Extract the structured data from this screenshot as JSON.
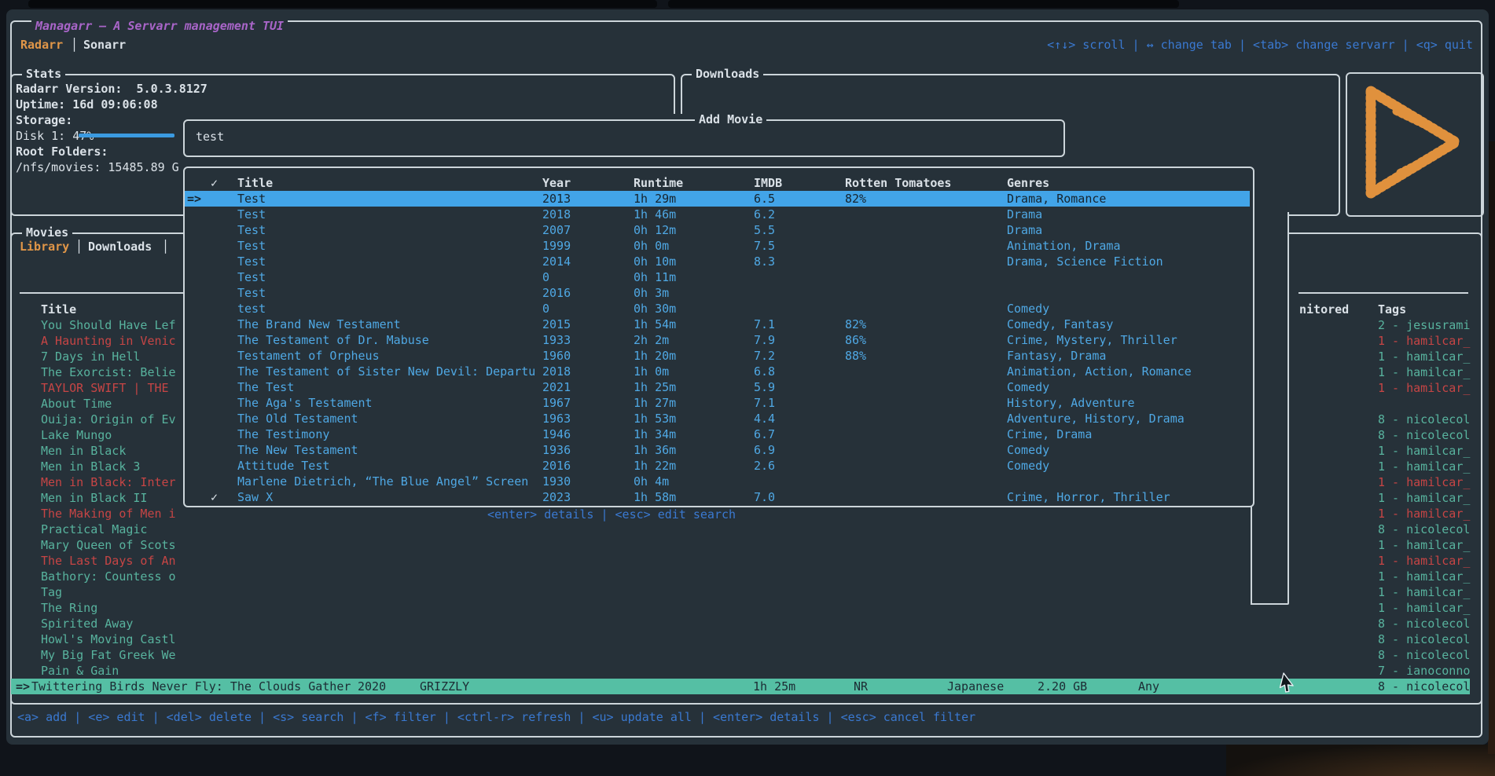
{
  "window": {
    "title": "Managarr – A Servarr management TUI",
    "tab_radarr": "Radarr",
    "tab_sonarr": "Sonarr",
    "separator": "│",
    "help": "<↑↓> scroll | ↔ change tab | <tab> change servarr | <q> quit"
  },
  "stats": {
    "title": "Stats",
    "version_line": "Radarr Version:  5.0.3.8127",
    "uptime_line": "Uptime: 16d 09:06:08",
    "storage_label": "Storage:",
    "disk_line": "Disk 1: 47%",
    "disk_percent": 47,
    "root_label": "Root Folders:",
    "root_line": "/nfs/movies: 15485.89 G"
  },
  "downloads": {
    "title": "Downloads"
  },
  "logo": {
    "icon": "radarr-dotted-play-logo",
    "color": "#e0913d"
  },
  "movies": {
    "title": "Movies",
    "tab_library": "Library",
    "tab_downloads": "Downloads",
    "headers": {
      "title": "Title",
      "monitored": "nitored",
      "tags": "Tags"
    },
    "rows": [
      {
        "title": "You Should Have Lef",
        "flag": false,
        "tag": "2 - jesusrami",
        "tag_flag": false
      },
      {
        "title": "A Haunting in Venic",
        "flag": true,
        "tag": "1 - hamilcar_",
        "tag_flag": true
      },
      {
        "title": "7 Days in Hell",
        "flag": false,
        "tag": "1 - hamilcar_",
        "tag_flag": false
      },
      {
        "title": "The Exorcist: Belie",
        "flag": false,
        "tag": "1 - hamilcar_",
        "tag_flag": false
      },
      {
        "title": "TAYLOR SWIFT | THE",
        "flag": true,
        "tag": "1 - hamilcar_",
        "tag_flag": true
      },
      {
        "title": "About Time",
        "flag": false,
        "tag": "",
        "tag_flag": false
      },
      {
        "title": "Ouija: Origin of Ev",
        "flag": false,
        "tag": "8 - nicolecol",
        "tag_flag": false
      },
      {
        "title": "Lake Mungo",
        "flag": false,
        "tag": "8 - nicolecol",
        "tag_flag": false
      },
      {
        "title": "Men in Black",
        "flag": false,
        "tag": "1 - hamilcar_",
        "tag_flag": false
      },
      {
        "title": "Men in Black 3",
        "flag": false,
        "tag": "1 - hamilcar_",
        "tag_flag": false
      },
      {
        "title": "Men in Black: Inter",
        "flag": true,
        "tag": "1 - hamilcar_",
        "tag_flag": true
      },
      {
        "title": "Men in Black II",
        "flag": false,
        "tag": "1 - hamilcar_",
        "tag_flag": false
      },
      {
        "title": "The Making of Men i",
        "flag": true,
        "tag": "1 - hamilcar_",
        "tag_flag": true
      },
      {
        "title": "Practical Magic",
        "flag": false,
        "tag": "8 - nicolecol",
        "tag_flag": false
      },
      {
        "title": "Mary Queen of Scots",
        "flag": false,
        "tag": "1 - hamilcar_",
        "tag_flag": false
      },
      {
        "title": "The Last Days of An",
        "flag": true,
        "tag": "1 - hamilcar_",
        "tag_flag": true
      },
      {
        "title": "Bathory: Countess o",
        "flag": false,
        "tag": "1 - hamilcar_",
        "tag_flag": false
      },
      {
        "title": "Tag",
        "flag": false,
        "tag": "1 - hamilcar_",
        "tag_flag": false
      },
      {
        "title": "The Ring",
        "flag": false,
        "tag": "1 - hamilcar_",
        "tag_flag": false
      },
      {
        "title": "Spirited Away",
        "flag": false,
        "tag": "8 - nicolecol",
        "tag_flag": false
      },
      {
        "title": "Howl's Moving Castl",
        "flag": false,
        "tag": "8 - nicolecol",
        "tag_flag": false
      },
      {
        "title": "My Big Fat Greek We",
        "flag": false,
        "tag": "8 - nicolecol",
        "tag_flag": false
      },
      {
        "title": "Pain & Gain",
        "flag": false,
        "tag": "7 - ianoconno",
        "tag_flag": false
      }
    ],
    "selected": {
      "marker": "=>",
      "title": "Twittering Birds Never Fly: The Clouds Gather",
      "year": "2020",
      "studio": "GRIZZLY",
      "runtime": "1h 25m",
      "rating": "NR",
      "language": "Japanese",
      "size": "2.20 GB",
      "quality": "Any",
      "tag": "8 - nicolecol"
    }
  },
  "add_movie": {
    "title": "Add Movie",
    "search_value": "test",
    "selected_marker": "=>",
    "checkmark": "✓",
    "headers": {
      "check": "✓",
      "title": "Title",
      "year": "Year",
      "runtime": "Runtime",
      "imdb": "IMDB",
      "rotten_tomatoes": "Rotten Tomatoes",
      "genres": "Genres"
    },
    "rows": [
      {
        "selected": true,
        "checked": false,
        "title": "Test",
        "year": "2013",
        "runtime": "1h 29m",
        "imdb": "6.5",
        "rt": "82%",
        "genres": "Drama, Romance"
      },
      {
        "selected": false,
        "checked": false,
        "title": "Test",
        "year": "2018",
        "runtime": "1h 46m",
        "imdb": "6.2",
        "rt": "",
        "genres": "Drama"
      },
      {
        "selected": false,
        "checked": false,
        "title": "Test",
        "year": "2007",
        "runtime": "0h 12m",
        "imdb": "5.5",
        "rt": "",
        "genres": "Drama"
      },
      {
        "selected": false,
        "checked": false,
        "title": "Test",
        "year": "1999",
        "runtime": "0h 0m",
        "imdb": "7.5",
        "rt": "",
        "genres": "Animation, Drama"
      },
      {
        "selected": false,
        "checked": false,
        "title": "Test",
        "year": "2014",
        "runtime": "0h 10m",
        "imdb": "8.3",
        "rt": "",
        "genres": "Drama, Science Fiction"
      },
      {
        "selected": false,
        "checked": false,
        "title": "Test",
        "year": "0",
        "runtime": "0h 11m",
        "imdb": "",
        "rt": "",
        "genres": ""
      },
      {
        "selected": false,
        "checked": false,
        "title": "Test",
        "year": "2016",
        "runtime": "0h 3m",
        "imdb": "",
        "rt": "",
        "genres": ""
      },
      {
        "selected": false,
        "checked": false,
        "title": "test",
        "year": "0",
        "runtime": "0h 30m",
        "imdb": "",
        "rt": "",
        "genres": "Comedy"
      },
      {
        "selected": false,
        "checked": false,
        "title": "The Brand New Testament",
        "year": "2015",
        "runtime": "1h 54m",
        "imdb": "7.1",
        "rt": "82%",
        "genres": "Comedy, Fantasy"
      },
      {
        "selected": false,
        "checked": false,
        "title": "The Testament of Dr. Mabuse",
        "year": "1933",
        "runtime": "2h 2m",
        "imdb": "7.9",
        "rt": "86%",
        "genres": "Crime, Mystery, Thriller"
      },
      {
        "selected": false,
        "checked": false,
        "title": "Testament of Orpheus",
        "year": "1960",
        "runtime": "1h 20m",
        "imdb": "7.2",
        "rt": "88%",
        "genres": "Fantasy, Drama"
      },
      {
        "selected": false,
        "checked": false,
        "title": "The Testament of Sister New Devil: Departu",
        "year": "2018",
        "runtime": "1h 0m",
        "imdb": "6.8",
        "rt": "",
        "genres": "Animation, Action, Romance"
      },
      {
        "selected": false,
        "checked": false,
        "title": "The Test",
        "year": "2021",
        "runtime": "1h 25m",
        "imdb": "5.9",
        "rt": "",
        "genres": "Comedy"
      },
      {
        "selected": false,
        "checked": false,
        "title": "The Aga's Testament",
        "year": "1967",
        "runtime": "1h 27m",
        "imdb": "7.1",
        "rt": "",
        "genres": "History, Adventure"
      },
      {
        "selected": false,
        "checked": false,
        "title": "The Old Testament",
        "year": "1963",
        "runtime": "1h 53m",
        "imdb": "4.4",
        "rt": "",
        "genres": "Adventure, History, Drama"
      },
      {
        "selected": false,
        "checked": false,
        "title": "The Testimony",
        "year": "1946",
        "runtime": "1h 34m",
        "imdb": "6.7",
        "rt": "",
        "genres": "Crime, Drama"
      },
      {
        "selected": false,
        "checked": false,
        "title": "The New Testament",
        "year": "1936",
        "runtime": "1h 36m",
        "imdb": "6.9",
        "rt": "",
        "genres": "Comedy"
      },
      {
        "selected": false,
        "checked": false,
        "title": "Attitude Test",
        "year": "2016",
        "runtime": "1h 22m",
        "imdb": "2.6",
        "rt": "",
        "genres": "Comedy"
      },
      {
        "selected": false,
        "checked": false,
        "title": "Marlene Dietrich, “The Blue Angel” Screen",
        "year": "1930",
        "runtime": "0h 4m",
        "imdb": "",
        "rt": "",
        "genres": ""
      },
      {
        "selected": false,
        "checked": true,
        "title": "Saw X",
        "year": "2023",
        "runtime": "1h 58m",
        "imdb": "7.0",
        "rt": "",
        "genres": "Crime, Horror, Thriller"
      }
    ],
    "help": "<enter> details | <esc> edit search"
  },
  "bottom_bar": {
    "help": "<a> add | <e> edit | <del> delete | <s> search | <f> filter | <ctrl-r> refresh | <u> update all | <enter> details | <esc> cancel filter"
  },
  "colors": {
    "background": "#263139",
    "border": "#ccd5da",
    "accent_orange": "#e09648",
    "accent_purple": "#a965c9",
    "key_blue": "#3a79d1",
    "row_blue": "#4fa8e4",
    "selection_blue": "#42a4e8",
    "teal": "#58b39e",
    "red": "#c64545",
    "selection_teal": "#55bfa4",
    "disk_bar": "#3b9ae0"
  }
}
